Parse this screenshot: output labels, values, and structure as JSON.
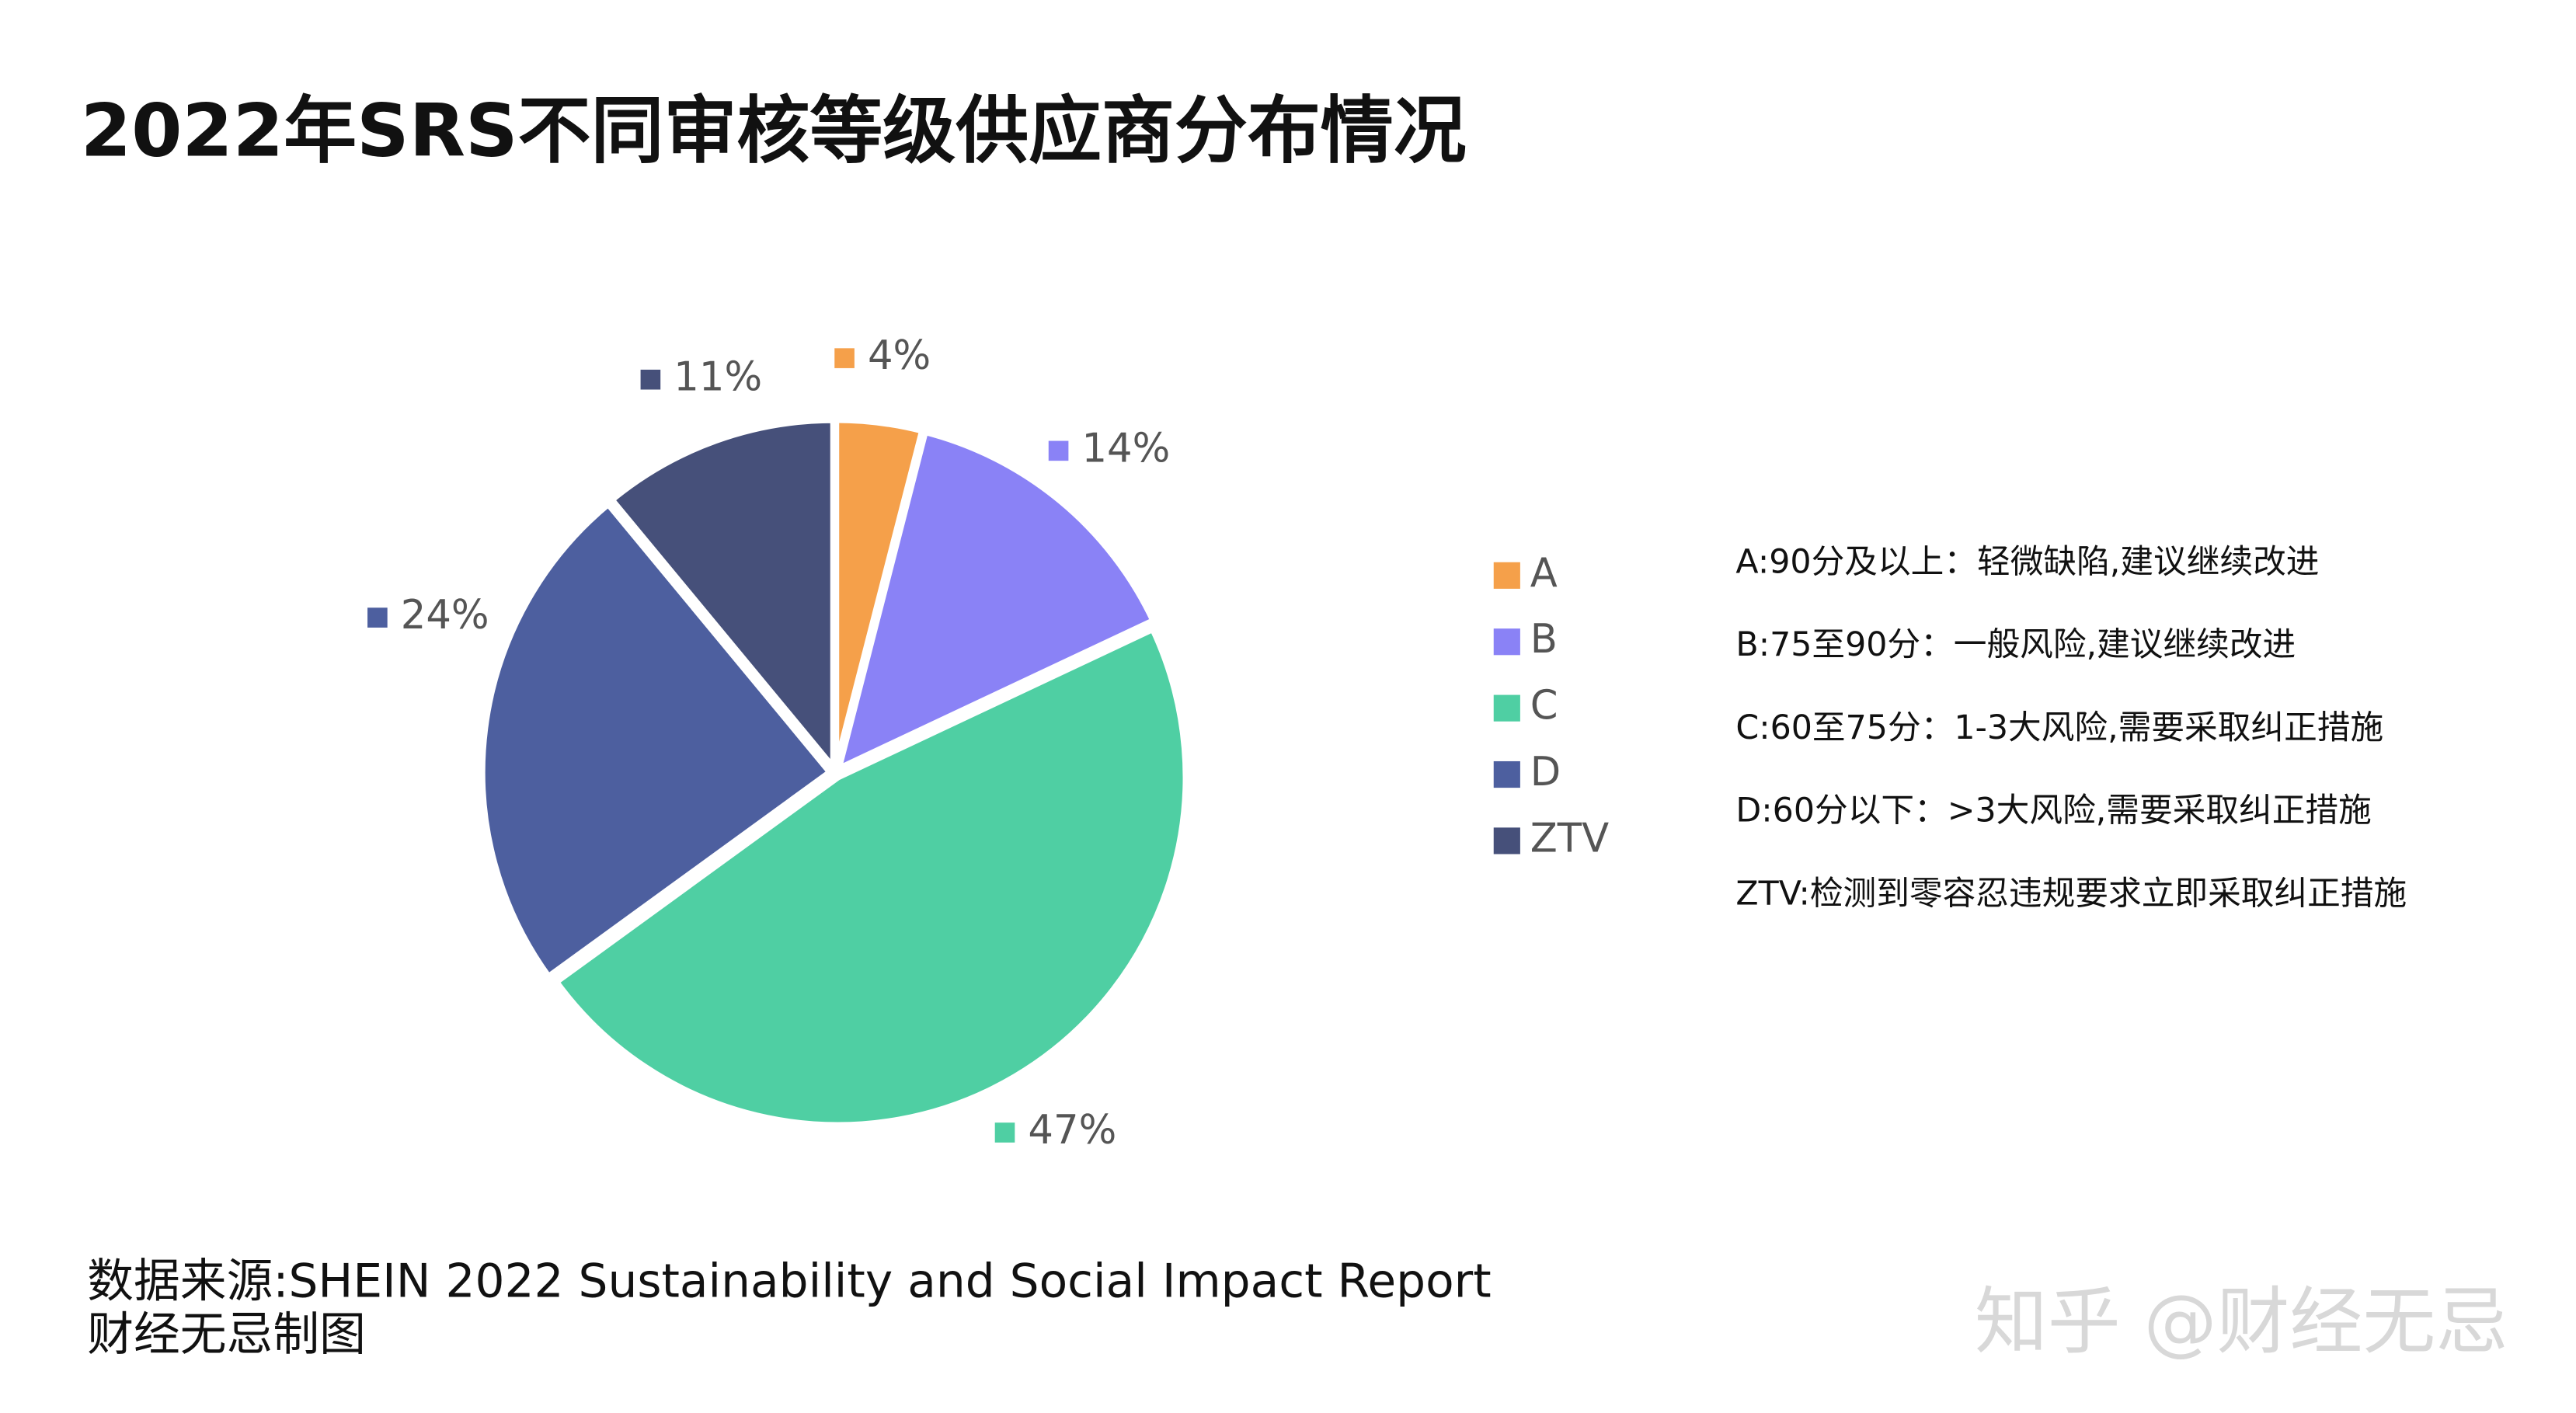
{
  "chart_data": {
    "type": "pie",
    "title": "2022年SRS不同审核等级供应商分布情况",
    "categories": [
      "A",
      "B",
      "C",
      "D",
      "ZTV"
    ],
    "values": [
      4,
      14,
      47,
      24,
      11
    ],
    "value_labels": [
      "4%",
      "14%",
      "47%",
      "24%",
      "11%"
    ],
    "colors": [
      "#f5a04a",
      "#8a82f6",
      "#4fcfa3",
      "#4d5f9f",
      "#46507a"
    ],
    "notes": [
      "A:90分及以上：轻微缺陷,建议继续改进",
      "B:75至90分：一般风险,建议继续改进",
      "C:60至75分：1-3大风险,需要采取纠正措施",
      "D:60分以下：>3大风险,需要采取纠正措施",
      "ZTV:检测到零容忍违规要求立即采取纠正措施"
    ],
    "source": "数据来源:SHEIN 2022 Sustainability and Social Impact Report",
    "credit": "财经无忌制图",
    "watermark": "知乎 @财经无忌"
  }
}
